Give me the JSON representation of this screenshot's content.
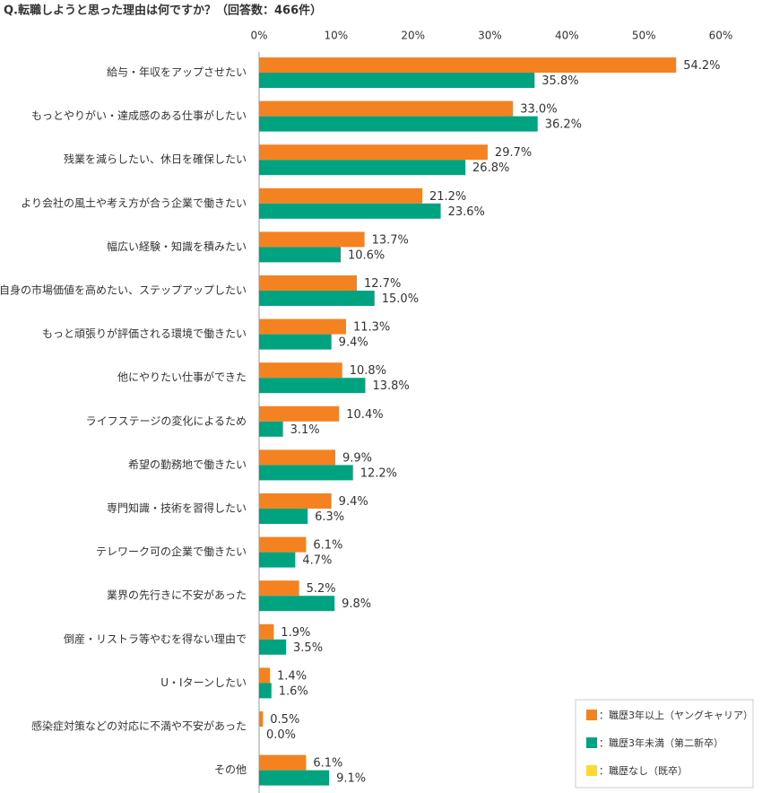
{
  "chart_data": {
    "type": "bar",
    "orientation": "horizontal",
    "title": "Q.転職しようと思った理由は何ですか？（回答数：466件）",
    "categories": [
      "給与・年収をアップさせたい",
      "もっとやりがい・達成感のある仕事がしたい",
      "残業を減らしたい、休日を確保したい",
      "より会社の風土や考え方が合う企業で働きたい",
      "幅広い経験・知識を積みたい",
      "自身の市場価値を高めたい、ステップアップしたい",
      "もっと頑張りが評価される環境で働きたい",
      "他にやりたい仕事ができた",
      "ライフステージの変化によるため",
      "希望の勤務地で働きたい",
      "専門知識・技術を習得したい",
      "テレワーク可の企業で働きたい",
      "業界の先行きに不安があった",
      "倒産・リストラ等やむを得ない理由で",
      "U・Iターンしたい",
      "感染症対策などの対応に不満や不安があった",
      "その他"
    ],
    "series": [
      {
        "name": "：職歴3年以上（ヤングキャリア）",
        "color": "#f58220",
        "values": [
          54.2,
          33.0,
          29.7,
          21.2,
          13.7,
          12.7,
          11.3,
          10.8,
          10.4,
          9.9,
          9.4,
          6.1,
          5.2,
          1.9,
          1.4,
          0.5,
          6.1
        ],
        "value_labels": [
          "54.2%",
          "33.0%",
          "29.7%",
          "21.2%",
          "13.7%",
          "12.7%",
          "11.3%",
          "10.8%",
          "10.4%",
          "9.9%",
          "9.4%",
          "6.1%",
          "5.2%",
          "1.9%",
          "1.4%",
          "0.5%",
          "6.1%"
        ]
      },
      {
        "name": "：職歴3年未満（第二新卒）",
        "color": "#00a37f",
        "values": [
          35.8,
          36.2,
          26.8,
          23.6,
          10.6,
          15.0,
          9.4,
          13.8,
          3.1,
          12.2,
          6.3,
          4.7,
          9.8,
          3.5,
          1.6,
          0.0,
          9.1
        ],
        "value_labels": [
          "35.8%",
          "36.2%",
          "26.8%",
          "23.6%",
          "10.6%",
          "15.0%",
          "9.4%",
          "13.8%",
          "3.1%",
          "12.2%",
          "6.3%",
          "4.7%",
          "9.8%",
          "3.5%",
          "1.6%",
          "0.0%",
          "9.1%"
        ]
      },
      {
        "name": "：職歴なし（既卒）",
        "color": "#ffd92f",
        "values": [
          null,
          null,
          null,
          null,
          null,
          null,
          null,
          null,
          null,
          null,
          null,
          null,
          null,
          null,
          null,
          null,
          null
        ]
      }
    ],
    "xlim": [
      0,
      60
    ],
    "xticks": [
      {
        "value": 0,
        "label": "0%"
      },
      {
        "value": 10,
        "label": "10%"
      },
      {
        "value": 20,
        "label": "20%"
      },
      {
        "value": 30,
        "label": "30%"
      },
      {
        "value": 40,
        "label": "40%"
      },
      {
        "value": 50,
        "label": "50%"
      },
      {
        "value": 60,
        "label": "60%"
      }
    ],
    "legend": "bottom-right"
  }
}
